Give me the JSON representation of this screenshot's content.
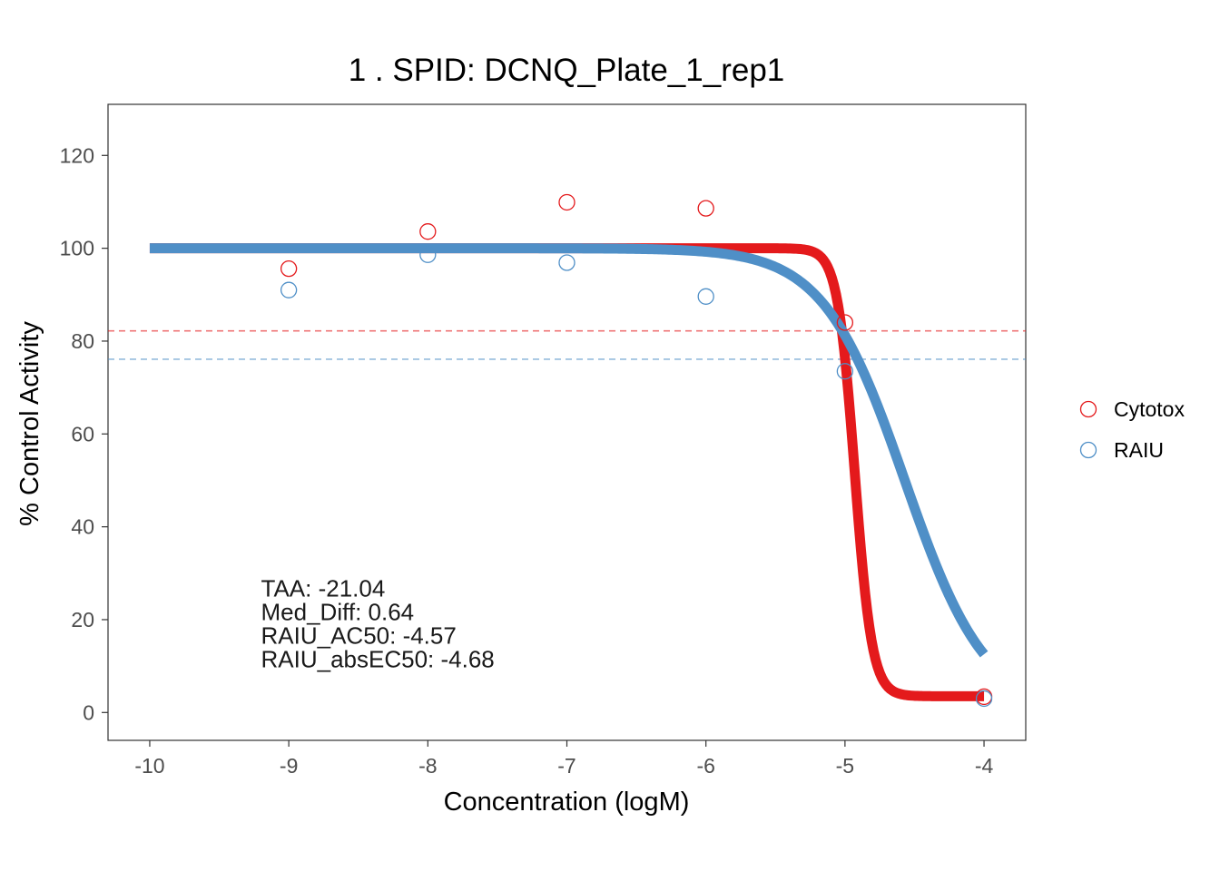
{
  "chart_data": {
    "type": "scatter",
    "title": "1 . SPID: DCNQ_Plate_1_rep1",
    "xlabel": "Concentration (logM)",
    "ylabel": "% Control Activity",
    "xlim": [
      -10.3,
      -3.7
    ],
    "ylim": [
      -6,
      131
    ],
    "x_ticks": [
      -10,
      -9,
      -8,
      -7,
      -6,
      -5,
      -4
    ],
    "x_tick_labels": [
      "-10",
      "-9",
      "-8",
      "-7",
      "-6",
      "-5",
      "-4"
    ],
    "y_ticks": [
      0,
      20,
      40,
      60,
      80,
      100,
      120
    ],
    "y_tick_labels": [
      "0",
      "20",
      "40",
      "60",
      "80",
      "100",
      "120"
    ],
    "grid": false,
    "legend_position": "right",
    "series": [
      {
        "name": "Cytotox",
        "color": "#e41a1c",
        "points": [
          {
            "x": -9,
            "y": 95.6
          },
          {
            "x": -8,
            "y": 103.6
          },
          {
            "x": -7,
            "y": 109.9
          },
          {
            "x": -6,
            "y": 108.6
          },
          {
            "x": -5,
            "y": 84.0
          },
          {
            "x": -4,
            "y": 3.4
          }
        ],
        "fit": {
          "top": 100,
          "bottom": 3.5,
          "log_ac50": -4.93,
          "hill": 7.0,
          "x_range": [
            -10,
            -4
          ]
        },
        "cutoff": 82.2
      },
      {
        "name": "RAIU",
        "color": "#4f8fc7",
        "points": [
          {
            "x": -9,
            "y": 91.0
          },
          {
            "x": -8,
            "y": 98.6
          },
          {
            "x": -7,
            "y": 96.9
          },
          {
            "x": -6,
            "y": 89.6
          },
          {
            "x": -5,
            "y": 73.5
          },
          {
            "x": -4,
            "y": 3.0
          }
        ],
        "fit": {
          "top": 100,
          "bottom": 0,
          "log_ac50": -4.57,
          "hill": 1.48,
          "x_range": [
            -10,
            -4
          ]
        },
        "cutoff": 76.1
      }
    ],
    "annotations": [
      "TAA: -21.04",
      "Med_Diff: 0.64",
      "RAIU_AC50: -4.57",
      "RAIU_absEC50: -4.68"
    ],
    "annotation_anchor": {
      "x": -9.2,
      "y": 25
    }
  }
}
